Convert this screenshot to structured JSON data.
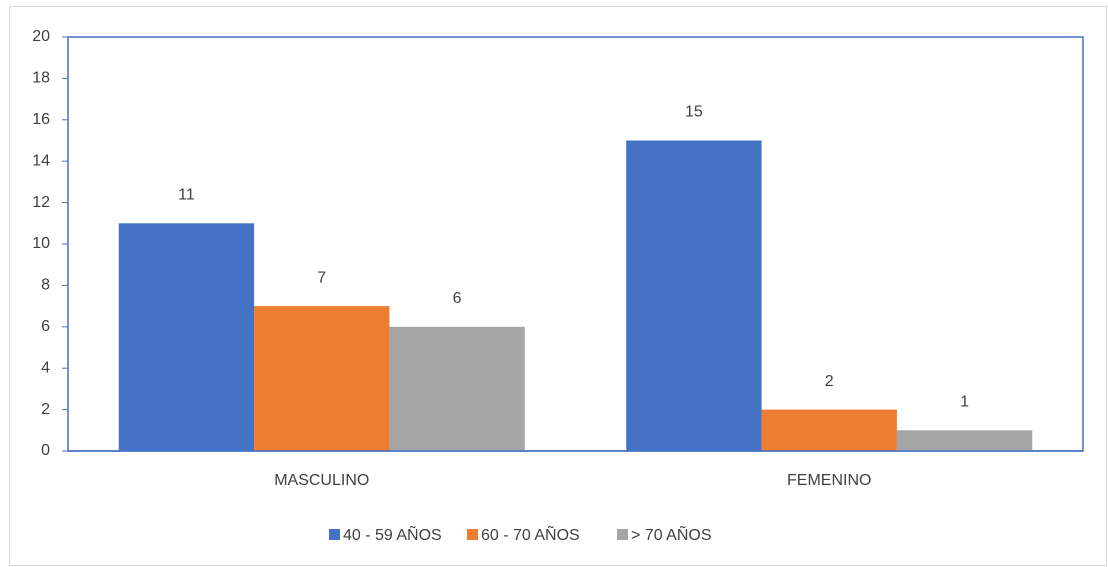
{
  "chart_data": {
    "type": "bar",
    "categories": [
      "MASCULINO",
      "FEMENINO"
    ],
    "series": [
      {
        "name": "40 - 59 AÑOS",
        "color": "#4472c4",
        "values": [
          11,
          15
        ]
      },
      {
        "name": "60 - 70 AÑOS",
        "color": "#ed7d31",
        "values": [
          7,
          2
        ]
      },
      {
        "name": "> 70 AÑOS",
        "color": "#a5a5a5",
        "values": [
          6,
          1
        ]
      }
    ],
    "ylim": [
      0,
      20
    ],
    "yticks": [
      0,
      2,
      4,
      6,
      8,
      10,
      12,
      14,
      16,
      18,
      20
    ],
    "grid": false,
    "legend": "bottom"
  }
}
